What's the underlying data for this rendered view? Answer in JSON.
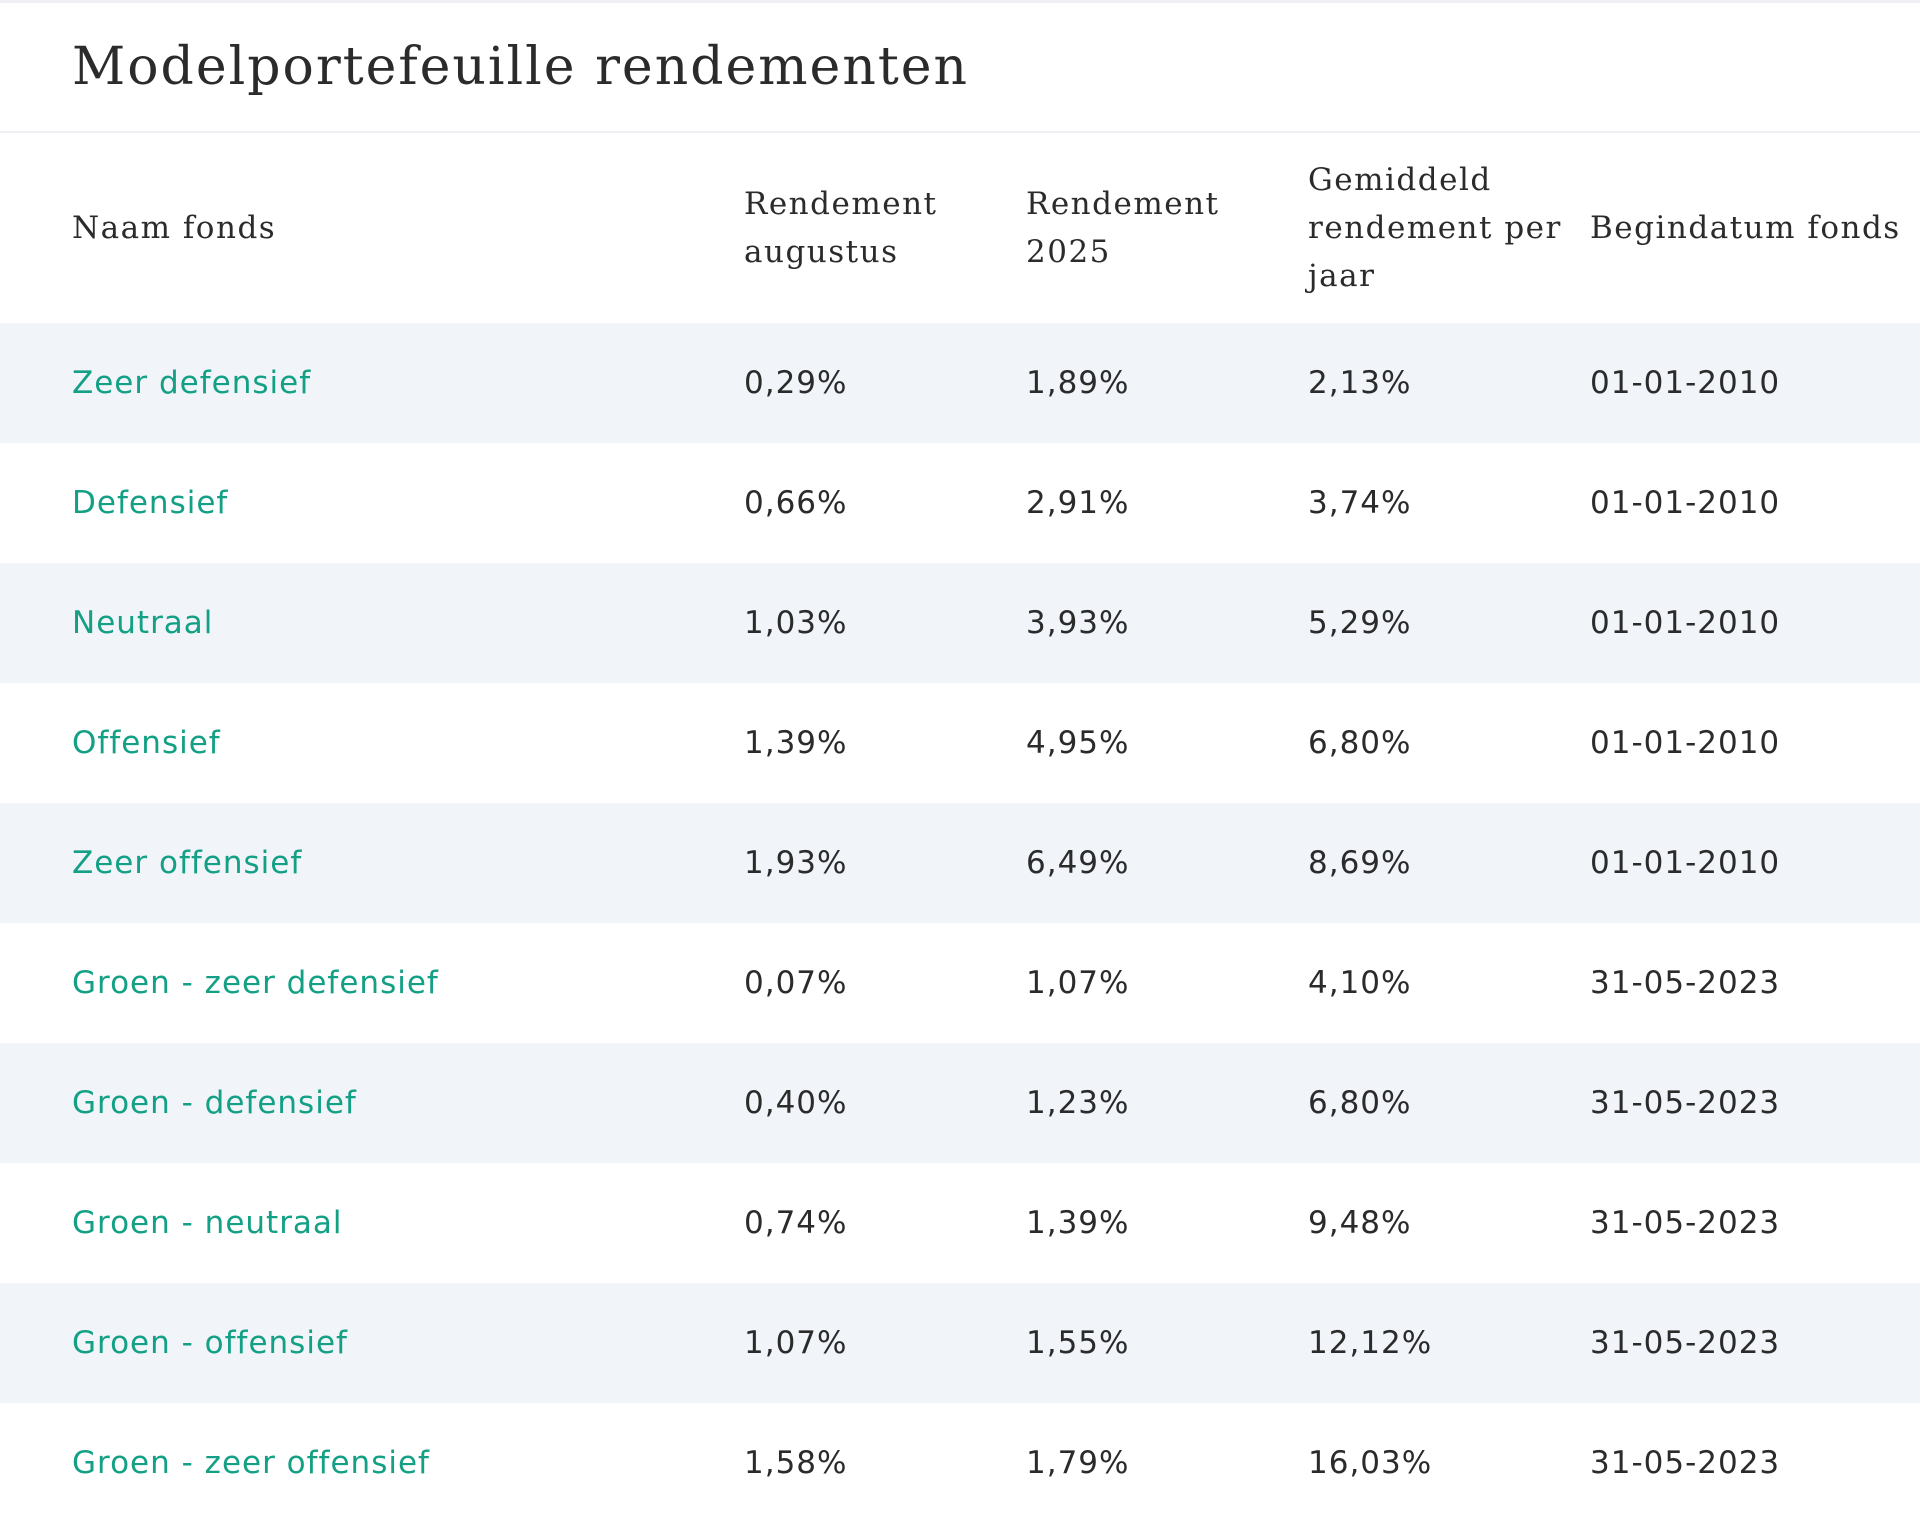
{
  "title": "Modelportefeuille rendementen",
  "columns": [
    "Naam fonds",
    "Rendement augustus",
    "Rendement 2025",
    "Gemiddeld rendement per jaar",
    "Begindatum fonds"
  ],
  "rows": [
    [
      "Zeer defensief",
      "0,29%",
      "1,89%",
      "2,13%",
      "01-01-2010"
    ],
    [
      "Defensief",
      "0,66%",
      "2,91%",
      "3,74%",
      "01-01-2010"
    ],
    [
      "Neutraal",
      "1,03%",
      "3,93%",
      "5,29%",
      "01-01-2010"
    ],
    [
      "Offensief",
      "1,39%",
      "4,95%",
      "6,80%",
      "01-01-2010"
    ],
    [
      "Zeer offensief",
      "1,93%",
      "6,49%",
      "8,69%",
      "01-01-2010"
    ],
    [
      "Groen - zeer defensief",
      "0,07%",
      "1,07%",
      "4,10%",
      "31-05-2023"
    ],
    [
      "Groen - defensief",
      "0,40%",
      "1,23%",
      "6,80%",
      "31-05-2023"
    ],
    [
      "Groen - neutraal",
      "0,74%",
      "1,39%",
      "9,48%",
      "31-05-2023"
    ],
    [
      "Groen - offensief",
      "1,07%",
      "1,55%",
      "12,12%",
      "31-05-2023"
    ],
    [
      "Groen - zeer offensief",
      "1,58%",
      "1,79%",
      "16,03%",
      "31-05-2023"
    ]
  ],
  "colors": {
    "fund_name": "#14a085",
    "text": "#2b2b2b",
    "row_stripe": "#f1f4f9",
    "divider": "#eef0f3"
  }
}
